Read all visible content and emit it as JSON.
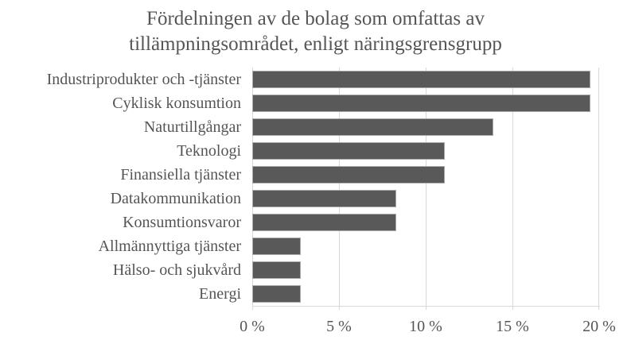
{
  "title": {
    "line1": "Fördelningen av de bolag som omfattas av",
    "line2": "tillämpningsområdet, enligt näringsgrensgrupp"
  },
  "chart_data": {
    "type": "bar",
    "orientation": "horizontal",
    "title": "Fördelningen av de bolag som omfattas av tillämpningsområdet, enligt näringsgrensgrupp",
    "categories": [
      "Industriprodukter och -tjänster",
      "Cyklisk konsumtion",
      "Naturtillgångar",
      "Teknologi",
      "Finansiella tjänster",
      "Datakommunikation",
      "Konsumtionsvaror",
      "Allmännyttiga tjänster",
      "Hälso- och sjukvård",
      "Energi"
    ],
    "values": [
      19.5,
      19.5,
      13.9,
      11.1,
      11.1,
      8.3,
      8.3,
      2.8,
      2.8,
      2.8
    ],
    "unit": "%",
    "x_ticks": [
      "0 %",
      "5 %",
      "10 %",
      "15 %",
      "20 %"
    ],
    "xlim": [
      0,
      20
    ],
    "grid": true,
    "legend": false,
    "xlabel": "",
    "ylabel": "",
    "colors": {
      "bar_fill": "#595959",
      "bar_border": "#ababab",
      "gridline": "#d9d9d9",
      "text": "#555555",
      "background": "#ffffff"
    }
  }
}
